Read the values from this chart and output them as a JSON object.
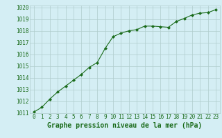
{
  "x": [
    0,
    1,
    2,
    3,
    4,
    5,
    6,
    7,
    8,
    9,
    10,
    11,
    12,
    13,
    14,
    15,
    16,
    17,
    18,
    19,
    20,
    21,
    22,
    23
  ],
  "y": [
    1011.1,
    1011.5,
    1012.2,
    1012.8,
    1013.3,
    1013.8,
    1014.3,
    1014.9,
    1015.3,
    1016.5,
    1017.5,
    1017.8,
    1018.0,
    1018.1,
    1018.4,
    1018.4,
    1018.35,
    1018.3,
    1018.8,
    1019.05,
    1019.35,
    1019.5,
    1019.55,
    1019.8
  ],
  "xlabel": "Graphe pression niveau de la mer (hPa)",
  "ylim": [
    1011,
    1020
  ],
  "xlim": [
    -0.5,
    23.5
  ],
  "yticks": [
    1011,
    1012,
    1013,
    1014,
    1015,
    1016,
    1017,
    1018,
    1019,
    1020
  ],
  "xticks": [
    0,
    1,
    2,
    3,
    4,
    5,
    6,
    7,
    8,
    9,
    10,
    11,
    12,
    13,
    14,
    15,
    16,
    17,
    18,
    19,
    20,
    21,
    22,
    23
  ],
  "line_color": "#1a6b1a",
  "marker": "D",
  "marker_size": 2.0,
  "bg_color": "#d4eef4",
  "grid_color": "#b0cccc",
  "xlabel_fontsize": 7,
  "tick_fontsize": 5.5,
  "xlabel_fontweight": "bold",
  "line_width": 0.8
}
